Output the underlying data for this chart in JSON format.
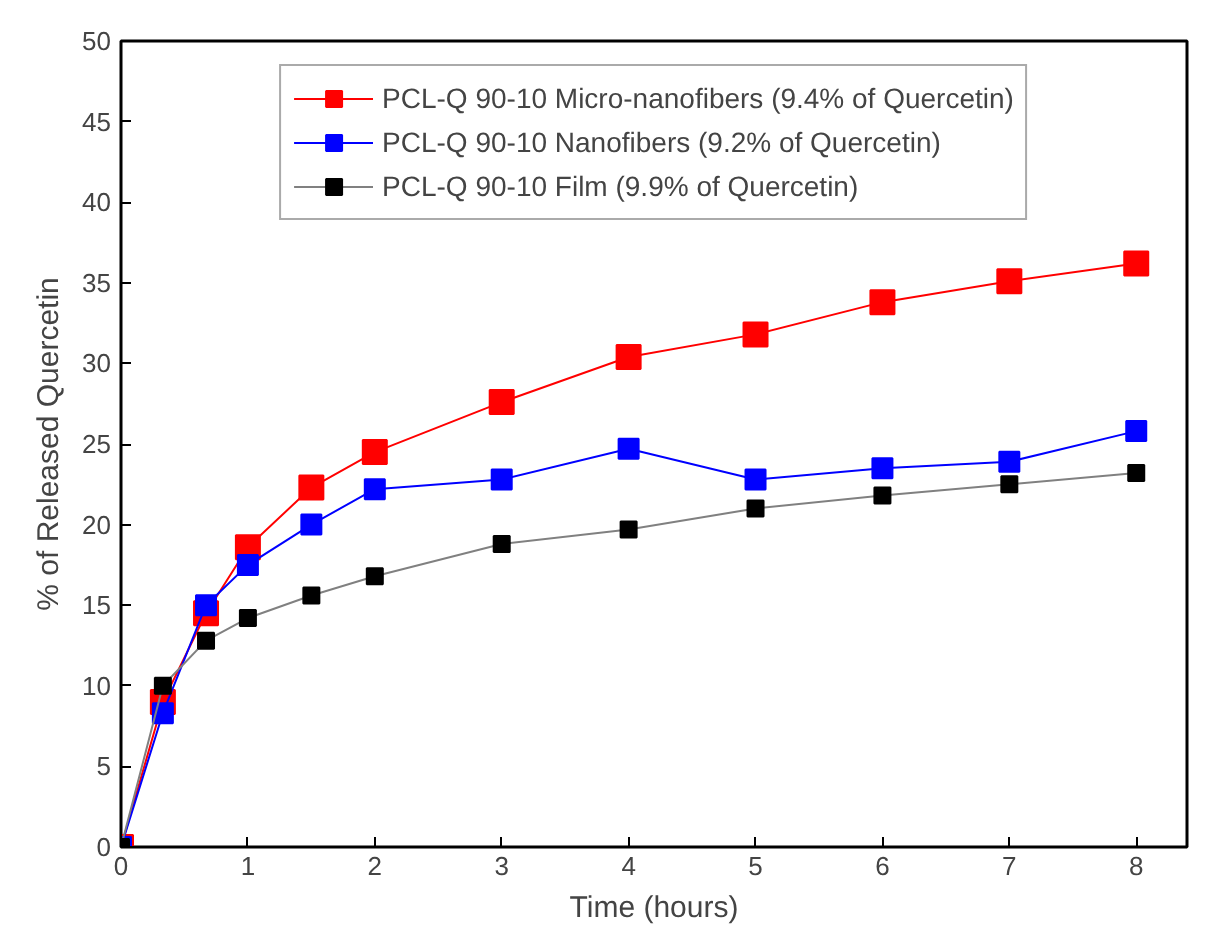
{
  "chart_data": {
    "type": "line",
    "xlabel": "Time (hours)",
    "ylabel": "% of Released Quercetin",
    "x": [
      0,
      0.33,
      0.67,
      1,
      1.5,
      2,
      3,
      4,
      5,
      6,
      7,
      8
    ],
    "series": [
      {
        "name": "PCL-Q 90-10 Micro-nanofibers (9.4% of Quercetin)",
        "color": "#ff0000",
        "values": [
          0,
          9,
          14.5,
          18.6,
          22.3,
          24.5,
          27.6,
          30.4,
          31.8,
          33.8,
          35.1,
          36.2
        ]
      },
      {
        "name": "PCL-Q 90-10 Nanofibers (9.2% of Quercetin)",
        "color": "#0000ff",
        "values": [
          0,
          8.3,
          15,
          17.5,
          20,
          22.2,
          22.8,
          24.7,
          22.8,
          23.5,
          23.9,
          25.8
        ]
      },
      {
        "name": "PCL-Q 90-10 Film (9.9% of Quercetin)",
        "color": "#000000",
        "values": [
          0,
          10,
          12.8,
          14.2,
          15.6,
          16.8,
          18.8,
          19.7,
          21,
          21.8,
          22.5,
          23.2
        ]
      }
    ],
    "xlim": [
      0,
      8.4
    ],
    "ylim": [
      0,
      50
    ],
    "xticks": [
      0,
      1,
      2,
      3,
      4,
      5,
      6,
      7,
      8
    ],
    "yticks": [
      0,
      5,
      10,
      15,
      20,
      25,
      30,
      35,
      40,
      45,
      50
    ],
    "grid": false,
    "legend": "top",
    "marker": "square",
    "line_style": "solid"
  }
}
